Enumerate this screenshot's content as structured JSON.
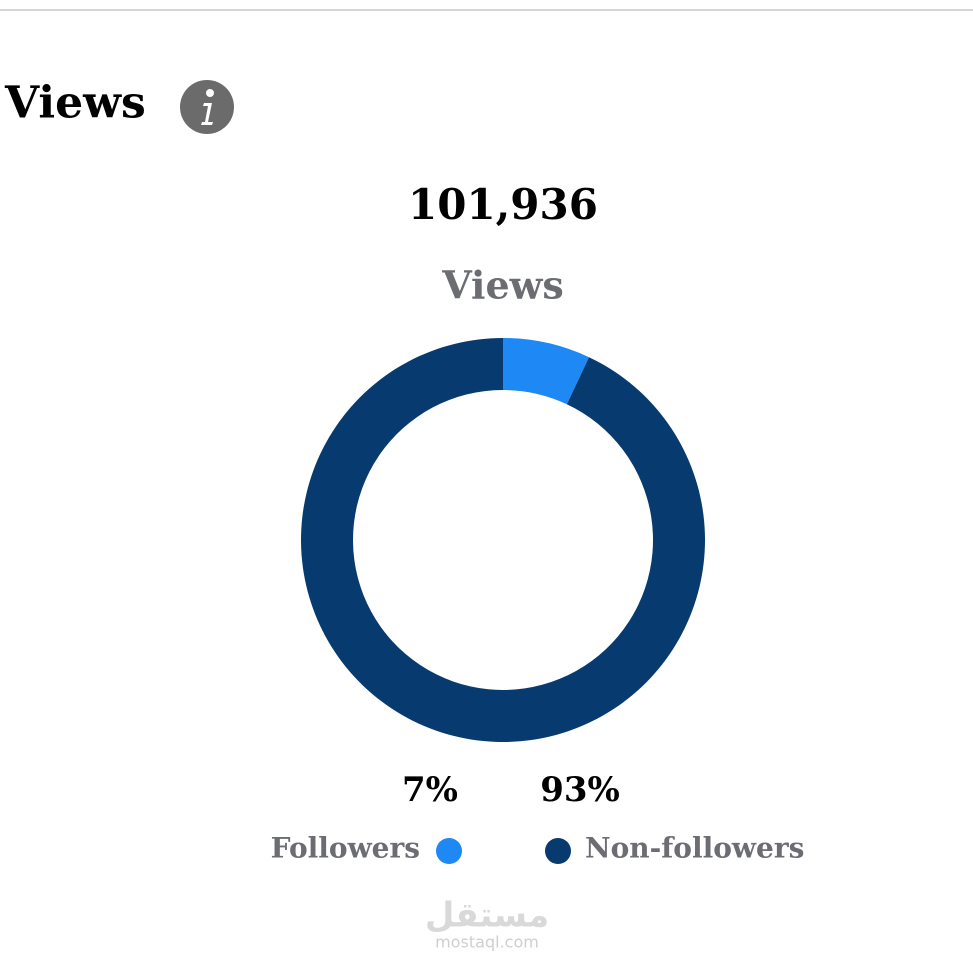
{
  "header": {
    "title": "Views"
  },
  "summary": {
    "total": "101,936",
    "label": "Views"
  },
  "chart_data": {
    "type": "donut",
    "categories": [
      "Followers",
      "Non-followers"
    ],
    "values": [
      7,
      93
    ],
    "value_labels": [
      "7%",
      "93%"
    ],
    "colors": [
      "#1e88f5",
      "#073a6e"
    ]
  },
  "watermark": {
    "arabic": "مستقل",
    "latin": "mostaql.com"
  }
}
